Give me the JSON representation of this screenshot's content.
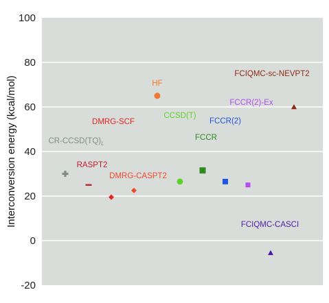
{
  "chart_data": {
    "type": "scatter",
    "ylabel": "Interconversion energy (kcal/mol)",
    "ylim": [
      -20,
      100
    ],
    "yticks": [
      -20,
      0,
      20,
      40,
      60,
      80,
      100
    ],
    "grid": "horizontal",
    "legend": "none",
    "plot_background": "#d9ddda",
    "grid_color": "#ffffff",
    "points": [
      {
        "name": "CR-CCSD(TQ)",
        "name_subscript": "L",
        "y": 30.0,
        "marker": "cross",
        "color": "#7f8c86"
      },
      {
        "name": "RASPT2",
        "y": 25.0,
        "marker": "dash",
        "color": "#c0202a"
      },
      {
        "name": "DMRG-SCF",
        "y": 19.5,
        "marker": "diamond",
        "color": "#e8241c"
      },
      {
        "name": "DMRG-CASPT2",
        "y": 22.5,
        "marker": "diamond",
        "color": "#f0492a"
      },
      {
        "name": "HF",
        "y": 65.0,
        "marker": "circle",
        "color": "#ef7a30"
      },
      {
        "name": "CCSD(T)",
        "y": 26.5,
        "marker": "circle",
        "color": "#5fd12a"
      },
      {
        "name": "FCCR",
        "y": 31.5,
        "marker": "square",
        "color": "#2e8b1e"
      },
      {
        "name": "FCCR(2)",
        "y": 26.5,
        "marker": "square",
        "color": "#1f54e0"
      },
      {
        "name": "FCCR(2)-Ex",
        "y": 25.0,
        "marker": "square",
        "color": "#b24df0"
      },
      {
        "name": "FCIQMC-CASCI",
        "y": -5.5,
        "marker": "triangle",
        "color": "#4a1da8"
      },
      {
        "name": "FCIQMC-sc-NEVPT2",
        "y": 60.0,
        "marker": "triangle",
        "color": "#8b2a12"
      }
    ]
  }
}
